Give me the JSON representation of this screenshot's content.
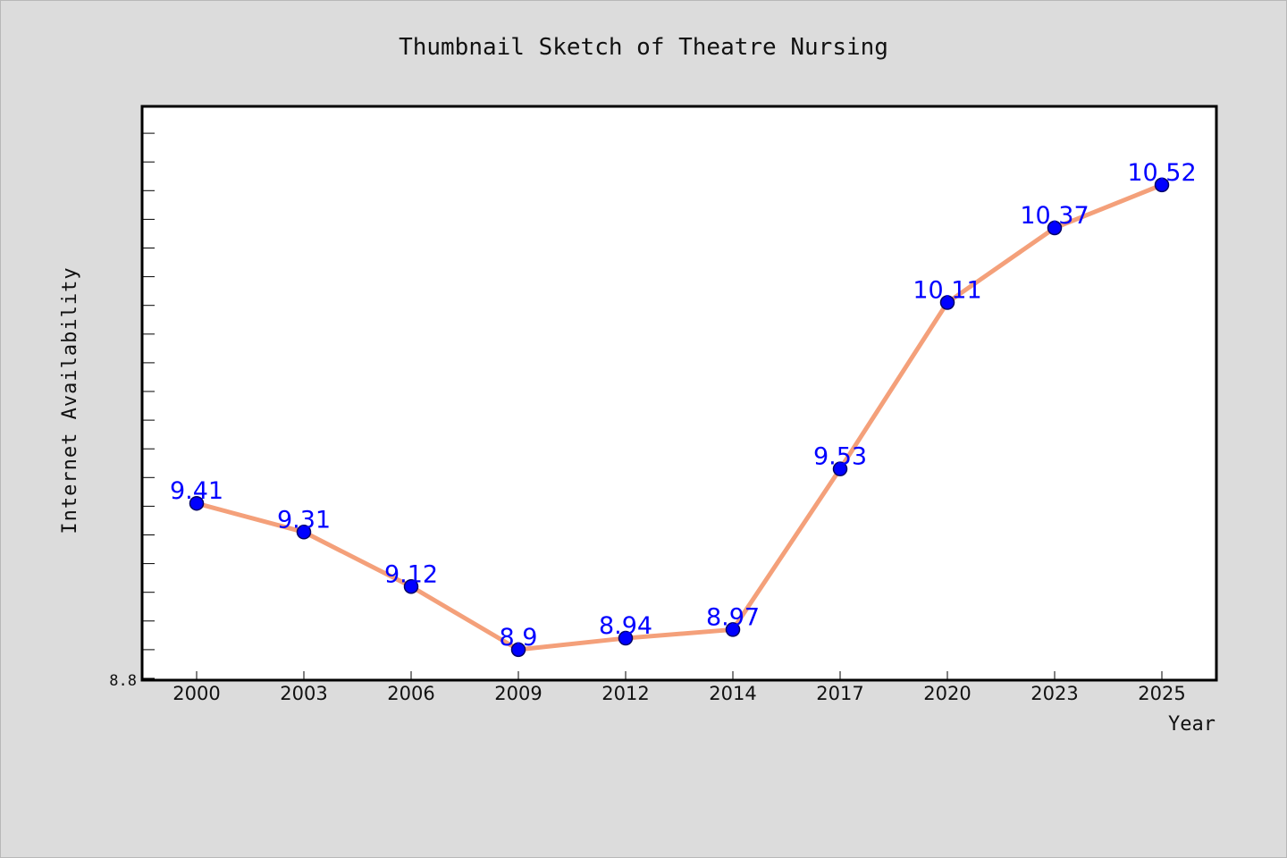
{
  "chart_data": {
    "type": "line",
    "title": "Thumbnail Sketch of Theatre Nursing",
    "xlabel": "Year",
    "ylabel": "Internet Availability",
    "categories": [
      "2000",
      "2003",
      "2006",
      "2009",
      "2012",
      "2014",
      "2017",
      "2020",
      "2023",
      "2025"
    ],
    "series": [
      {
        "values": [
          9.41,
          9.31,
          9.12,
          8.9,
          8.94,
          8.97,
          9.53,
          10.11,
          10.37,
          10.52
        ],
        "labels": [
          "9.41",
          "9.31",
          "9.12",
          "8.9",
          "8.94",
          "8.97",
          "9.53",
          "10.11",
          "10.37",
          "10.52"
        ]
      }
    ],
    "ylim": [
      8.8,
      10.8
    ],
    "y_tick_label": "8.8",
    "grid": false,
    "colors": {
      "line": "#f4a07a",
      "marker": "#0000ff",
      "marker_edge": "#000066",
      "label": "#0000ff",
      "background": "#dcdcdc",
      "plot_background": "#ffffff"
    }
  }
}
